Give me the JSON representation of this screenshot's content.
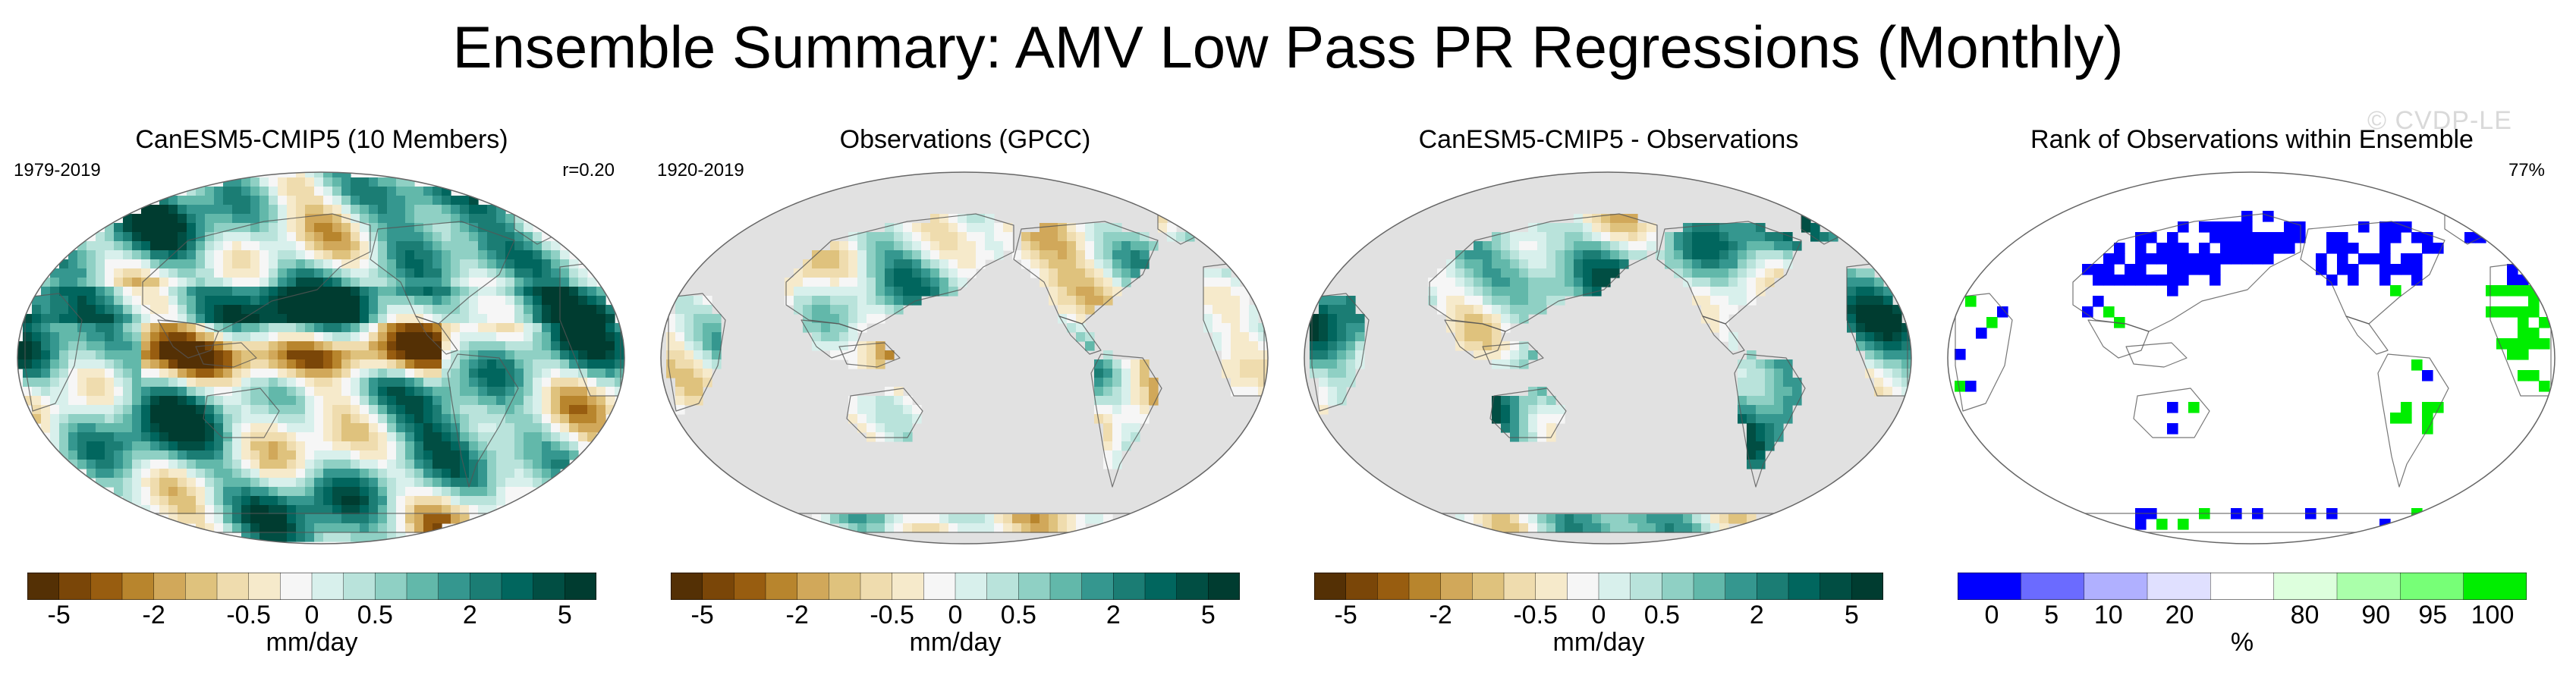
{
  "title": "Ensemble Summary: AMV Low Pass PR Regressions (Monthly)",
  "watermark": "© CVDP-LE",
  "colors": {
    "ocean_masked": "#e1e1e1",
    "brown_green_scale": [
      "#543005",
      "#7a4608",
      "#985d10",
      "#b8852d",
      "#d1a85a",
      "#dfc27d",
      "#efdcae",
      "#f6eacb",
      "#f6f6f6",
      "#d8f0ec",
      "#b9e3db",
      "#8fd0c4",
      "#62b8aa",
      "#35978f",
      "#1b7d74",
      "#01665e",
      "#014e43",
      "#003c30"
    ],
    "rank_scale": [
      "#0000ff",
      "#6b6bff",
      "#b0b0ff",
      "#e0e0ff",
      "#ffffff",
      "#ddffdd",
      "#aaffaa",
      "#77ff77",
      "#00ee00"
    ]
  },
  "panels": [
    {
      "title": "CanESM5-CMIP5 (10 Members)",
      "left_label": "1979-2019",
      "right_label": "r=0.20",
      "type": "model",
      "unit": "mm/day",
      "ticks": [
        "-5",
        "-2",
        "-0.5",
        "0",
        "0.5",
        "2",
        "5"
      ]
    },
    {
      "title": "Observations (GPCC)",
      "left_label": "1920-2019",
      "right_label": "",
      "type": "obs",
      "unit": "mm/day",
      "ticks": [
        "-5",
        "-2",
        "-0.5",
        "0",
        "0.5",
        "2",
        "5"
      ]
    },
    {
      "title": "CanESM5-CMIP5 - Observations",
      "left_label": "",
      "right_label": "",
      "type": "diff",
      "unit": "mm/day",
      "ticks": [
        "-5",
        "-2",
        "-0.5",
        "0",
        "0.5",
        "2",
        "5"
      ]
    },
    {
      "title": "Rank of Observations within Ensemble",
      "left_label": "",
      "right_label": "77%",
      "type": "rank",
      "unit": "%",
      "ticks": [
        "0",
        "5",
        "10",
        "20",
        "80",
        "90",
        "95",
        "100"
      ]
    }
  ],
  "chart_data": {
    "type": "heatmap",
    "title": "Ensemble Summary: AMV Low Pass PR Regressions (Monthly)",
    "projection": "Robinson, Pacific-centered",
    "maps": [
      {
        "name": "CanESM5-CMIP5 (10 Members)",
        "period": "1979-2019",
        "pattern_correlation": 0.2,
        "units": "mm/day",
        "color_levels": [
          -5,
          -2,
          -0.5,
          0,
          0.5,
          2,
          5
        ]
      },
      {
        "name": "Observations (GPCC)",
        "period": "1920-2019",
        "units": "mm/day",
        "color_levels": [
          -5,
          -2,
          -0.5,
          0,
          0.5,
          2,
          5
        ]
      },
      {
        "name": "CanESM5-CMIP5 - Observations",
        "units": "mm/day",
        "color_levels": [
          -5,
          -2,
          -0.5,
          0,
          0.5,
          2,
          5
        ]
      },
      {
        "name": "Rank of Observations within Ensemble",
        "summary": "77%",
        "units": "%",
        "color_levels": [
          0,
          5,
          10,
          20,
          80,
          90,
          95,
          100
        ]
      }
    ]
  }
}
